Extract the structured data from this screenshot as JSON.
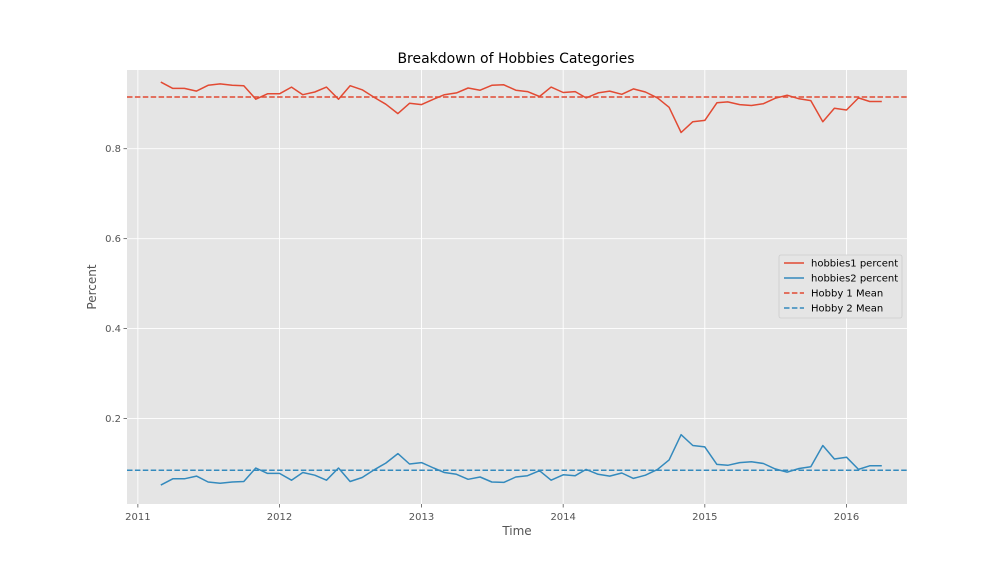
{
  "chart_data": {
    "type": "line",
    "title": "Breakdown of Hobbies Categories",
    "xlabel": "Time",
    "ylabel": "Percent",
    "x_ticks": [
      "2011",
      "2012",
      "2013",
      "2014",
      "2015",
      "2016"
    ],
    "y_ticks": [
      "0.2",
      "0.4",
      "0.6",
      "0.8"
    ],
    "xlim": [
      "2010-12-04",
      "2016-06-05"
    ],
    "ylim": [
      0.01,
      0.975
    ],
    "grid": true,
    "legend_position": "center-right",
    "x": [
      "2011-03",
      "2011-04",
      "2011-05",
      "2011-06",
      "2011-07",
      "2011-08",
      "2011-09",
      "2011-10",
      "2011-11",
      "2011-12",
      "2012-01",
      "2012-02",
      "2012-03",
      "2012-04",
      "2012-05",
      "2012-06",
      "2012-07",
      "2012-08",
      "2012-09",
      "2012-10",
      "2012-11",
      "2012-12",
      "2013-01",
      "2013-02",
      "2013-03",
      "2013-04",
      "2013-05",
      "2013-06",
      "2013-07",
      "2013-08",
      "2013-09",
      "2013-10",
      "2013-11",
      "2013-12",
      "2014-01",
      "2014-02",
      "2014-03",
      "2014-04",
      "2014-05",
      "2014-06",
      "2014-07",
      "2014-08",
      "2014-09",
      "2014-10",
      "2014-11",
      "2014-12",
      "2015-01",
      "2015-02",
      "2015-03",
      "2015-04",
      "2015-05",
      "2015-06",
      "2015-07",
      "2015-08",
      "2015-09",
      "2015-10",
      "2015-11",
      "2015-12",
      "2016-01",
      "2016-02",
      "2016-03",
      "2016-04"
    ],
    "series": [
      {
        "name": "hobbies1 percent",
        "color": "#e24a33",
        "style": "solid",
        "values": [
          0.948,
          0.934,
          0.934,
          0.928,
          0.941,
          0.944,
          0.941,
          0.94,
          0.91,
          0.922,
          0.922,
          0.937,
          0.92,
          0.926,
          0.937,
          0.91,
          0.94,
          0.931,
          0.914,
          0.899,
          0.878,
          0.901,
          0.898,
          0.91,
          0.92,
          0.924,
          0.935,
          0.93,
          0.941,
          0.942,
          0.93,
          0.927,
          0.916,
          0.937,
          0.925,
          0.927,
          0.913,
          0.924,
          0.928,
          0.921,
          0.933,
          0.926,
          0.913,
          0.892,
          0.836,
          0.86,
          0.863,
          0.902,
          0.904,
          0.898,
          0.896,
          0.9,
          0.912,
          0.919,
          0.911,
          0.907,
          0.86,
          0.89,
          0.886,
          0.913,
          0.905,
          0.905
        ]
      },
      {
        "name": "hobbies2 percent",
        "color": "#348abd",
        "style": "solid",
        "values": [
          0.052,
          0.066,
          0.066,
          0.072,
          0.059,
          0.056,
          0.059,
          0.06,
          0.09,
          0.078,
          0.078,
          0.063,
          0.08,
          0.074,
          0.063,
          0.09,
          0.06,
          0.069,
          0.086,
          0.101,
          0.122,
          0.099,
          0.102,
          0.09,
          0.08,
          0.076,
          0.065,
          0.07,
          0.059,
          0.058,
          0.07,
          0.073,
          0.084,
          0.063,
          0.075,
          0.073,
          0.087,
          0.076,
          0.072,
          0.079,
          0.067,
          0.074,
          0.087,
          0.108,
          0.164,
          0.14,
          0.137,
          0.098,
          0.096,
          0.102,
          0.104,
          0.1,
          0.088,
          0.081,
          0.089,
          0.093,
          0.14,
          0.11,
          0.114,
          0.087,
          0.095,
          0.095
        ]
      },
      {
        "name": "Hobby 1 Mean",
        "color": "#e24a33",
        "style": "dashed",
        "mean": 0.915
      },
      {
        "name": "Hobby 2 Mean",
        "color": "#348abd",
        "style": "dashed",
        "mean": 0.085
      }
    ]
  }
}
